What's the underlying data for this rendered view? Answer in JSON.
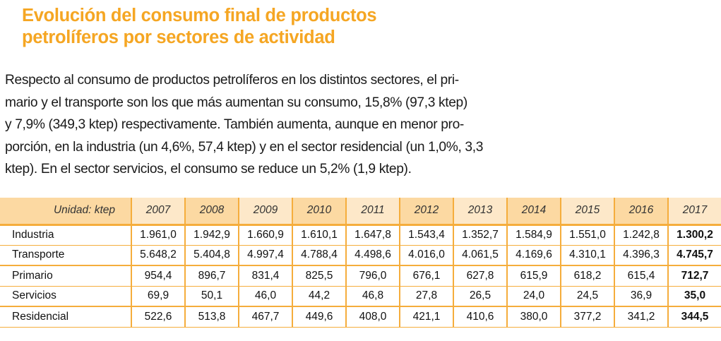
{
  "header": {
    "title_line1": "Evolución del consumo final de productos",
    "title_line2": "petrolíferos por sectores de actividad",
    "title_color": "#f5a623"
  },
  "paragraph": {
    "lines": [
      "Respecto al consumo de productos petrolíferos en los distintos sectores, el pri-",
      "mario y el transporte son los que más aumentan su consumo, 15,8% (97,3 ktep)",
      "y 7,9% (349,3 ktep) respectivamente. También aumenta, aunque en menor pro-",
      "porción, en la industria (un 4,6%, 57,4 ktep) y en el sector residencial (un 1,0%, 3,3",
      "ktep). En el sector servicios, el consumo se reduce un 5,2% (1,9 ktep)."
    ]
  },
  "table": {
    "unit_label": "Unidad: ktep",
    "years": [
      "2007",
      "2008",
      "2009",
      "2010",
      "2011",
      "2012",
      "2013",
      "2014",
      "2015",
      "2016",
      "2017"
    ],
    "rows": [
      {
        "sector": "Industria",
        "values": [
          "1.961,0",
          "1.942,9",
          "1.660,9",
          "1.610,1",
          "1.647,8",
          "1.543,4",
          "1.352,7",
          "1.584,9",
          "1.551,0",
          "1.242,8",
          "1.300,2"
        ]
      },
      {
        "sector": "Transporte",
        "values": [
          "5.648,2",
          "5.404,8",
          "4.997,4",
          "4.788,4",
          "4.498,6",
          "4.016,0",
          "4.061,5",
          "4.169,6",
          "4.310,1",
          "4.396,3",
          "4.745,7"
        ]
      },
      {
        "sector": "Primario",
        "values": [
          "954,4",
          "896,7",
          "831,4",
          "825,5",
          "796,0",
          "676,1",
          "627,8",
          "615,9",
          "618,2",
          "615,4",
          "712,7"
        ]
      },
      {
        "sector": "Servicios",
        "values": [
          "69,9",
          "50,1",
          "46,0",
          "44,2",
          "46,8",
          "27,8",
          "26,5",
          "24,0",
          "24,5",
          "36,9",
          "35,0"
        ]
      },
      {
        "sector": "Residencial",
        "values": [
          "522,6",
          "513,8",
          "467,7",
          "449,6",
          "408,0",
          "421,1",
          "410,6",
          "380,0",
          "377,2",
          "341,2",
          "344,5"
        ]
      }
    ],
    "colors": {
      "border": "#f5ad3c",
      "header_dark": "#fcd9a2",
      "header_light": "#fde8c9"
    }
  }
}
